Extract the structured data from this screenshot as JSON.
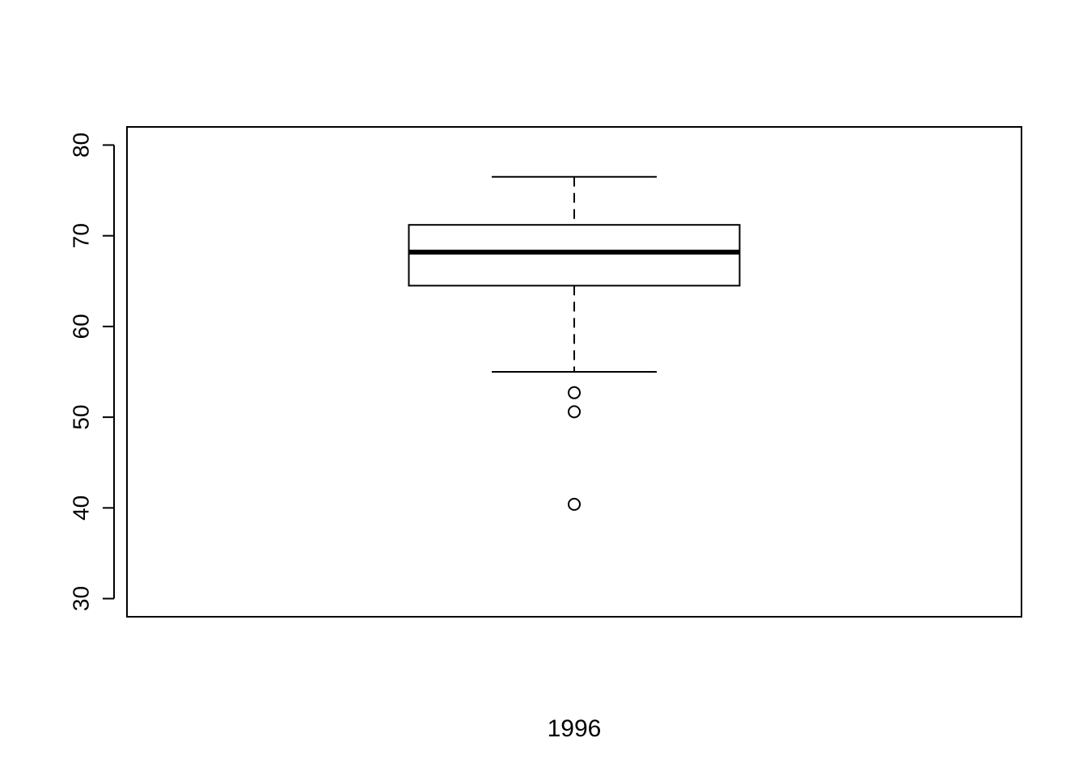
{
  "chart_data": {
    "type": "box",
    "xlabel": "1996",
    "ylabel": "",
    "title": "",
    "ylim": [
      28,
      82
    ],
    "yticks": [
      30,
      40,
      50,
      60,
      70,
      80
    ],
    "ytick_labels": [
      "30",
      "40",
      "50",
      "60",
      "70",
      "80"
    ],
    "grid": false,
    "boxes": [
      {
        "whisker_low": 55.0,
        "q1": 64.5,
        "median": 68.2,
        "q3": 71.2,
        "whisker_high": 76.5,
        "outliers": [
          52.7,
          50.6,
          40.4
        ]
      }
    ]
  }
}
